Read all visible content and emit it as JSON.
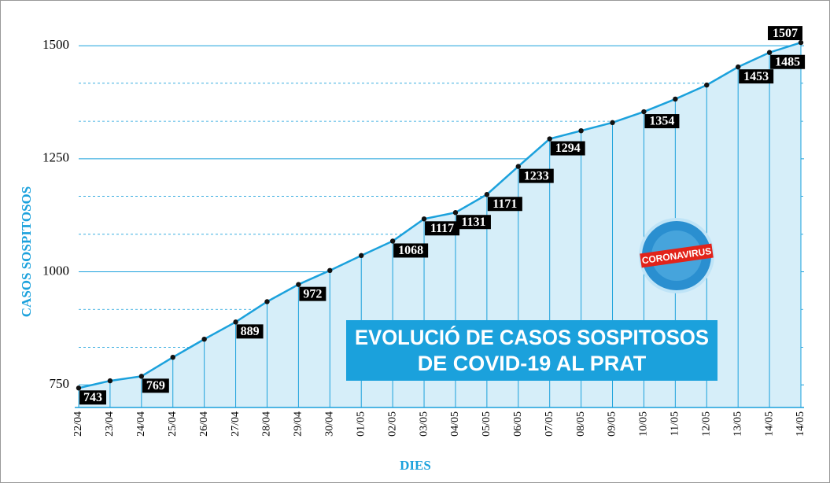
{
  "chart_data": {
    "type": "line",
    "title": "EVOLUCIÓ DE CASOS SOSPITOSOS",
    "subtitle": "DE COVID-19 AL PRAT",
    "badge": "CORONAVIRUS",
    "x_label": "DIES",
    "y_label": "CASOS SOSPITOSOS",
    "categories": [
      "22/04",
      "23/04",
      "24/04",
      "25/04",
      "26/04",
      "27/04",
      "28/04",
      "29/04",
      "30/04",
      "01/05",
      "02/05",
      "03/05",
      "04/05",
      "05/05",
      "06/05",
      "07/05",
      "08/05",
      "09/05",
      "10/05",
      "11/05",
      "12/05",
      "13/05",
      "14/05",
      "14/05"
    ],
    "values": [
      743,
      759,
      769,
      811,
      851,
      889,
      934,
      972,
      1003,
      1036,
      1068,
      1117,
      1131,
      1171,
      1233,
      1294,
      1312,
      1330,
      1354,
      1382,
      1413,
      1453,
      1485,
      1507
    ],
    "value_labels": [
      "743",
      null,
      "769",
      null,
      null,
      "889",
      null,
      "972",
      null,
      null,
      "1068",
      "1117",
      "1131",
      "1171",
      "1233",
      "1294",
      null,
      null,
      "1354",
      null,
      null,
      "1453",
      "1485",
      "1507"
    ],
    "color": "#1ba1dc",
    "fill": "#d6eef9",
    "ylim": [
      700,
      1575
    ],
    "yticks": [
      750,
      1000,
      1250,
      1500
    ],
    "minor_yticks": [
      833,
      917,
      1083,
      1167,
      1333,
      1417
    ],
    "grid": true
  }
}
